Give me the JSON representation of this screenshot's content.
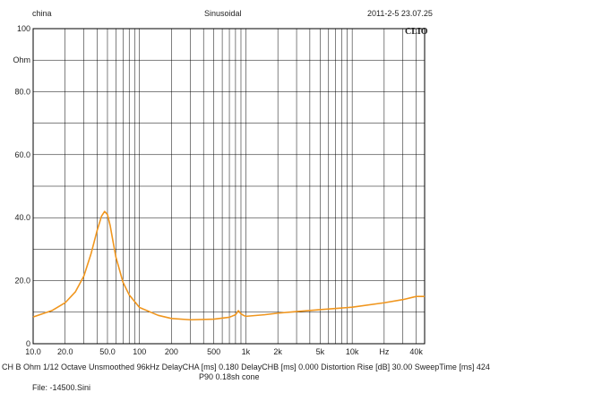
{
  "header": {
    "left": "china",
    "center": "Sinusoidal",
    "right": "2011-2-5 23.07.25",
    "logo": "CLIO"
  },
  "footer": {
    "line1": "CH B  Ohm  1/12 Octave  Unsmoothed  96kHz  DelayCHA [ms] 0.180  DelayCHB [ms] 0.000  Distortion Rise [dB] 30.00  SweepTime [ms] 424",
    "line2": "P90 0.18sh cone",
    "line3": "File: -14500.Sini"
  },
  "colors": {
    "curve": "#f0961e",
    "grid": "#000000",
    "background": "#ffffff"
  },
  "chart_data": {
    "type": "line",
    "title": "",
    "xlabel": "Hz",
    "ylabel": "Ohm",
    "xscale": "log",
    "xlim": [
      10,
      48000
    ],
    "ylim": [
      0,
      100
    ],
    "x_tick_labels": [
      {
        "x": 10,
        "label": "10.0"
      },
      {
        "x": 20,
        "label": "20.0"
      },
      {
        "x": 50,
        "label": "50.0"
      },
      {
        "x": 100,
        "label": "100"
      },
      {
        "x": 200,
        "label": "200"
      },
      {
        "x": 500,
        "label": "500"
      },
      {
        "x": 1000,
        "label": "1k"
      },
      {
        "x": 2000,
        "label": "2k"
      },
      {
        "x": 5000,
        "label": "5k"
      },
      {
        "x": 10000,
        "label": "10k"
      },
      {
        "x": 20000,
        "label": "Hz"
      },
      {
        "x": 40000,
        "label": "40k"
      }
    ],
    "y_tick_labels": [
      {
        "y": 0,
        "label": "0"
      },
      {
        "y": 20,
        "label": "20.0"
      },
      {
        "y": 40,
        "label": "40.0"
      },
      {
        "y": 60,
        "label": "60.0"
      },
      {
        "y": 80,
        "label": "80.0"
      },
      {
        "y": 90,
        "label": "Ohm"
      },
      {
        "y": 100,
        "label": "100"
      }
    ],
    "grid": true,
    "series": [
      {
        "x": [
          10,
          15,
          20,
          25,
          30,
          35,
          40,
          44,
          47,
          50,
          53,
          56,
          60,
          70,
          80,
          100,
          150,
          200,
          300,
          500,
          700,
          800,
          850,
          900,
          950,
          1000,
          1500,
          2000,
          3000,
          5000,
          10000,
          20000,
          30000,
          40000,
          48000
        ],
        "y": [
          8.5,
          10.5,
          13,
          16.5,
          21.5,
          28.5,
          36,
          40.5,
          42,
          41,
          37.5,
          33,
          27.5,
          19.5,
          15.5,
          11.5,
          9,
          8,
          7.6,
          7.8,
          8.4,
          9.2,
          10.5,
          9.5,
          9,
          8.7,
          9.2,
          9.7,
          10.2,
          10.8,
          11.6,
          13,
          14,
          15,
          15
        ]
      }
    ]
  }
}
